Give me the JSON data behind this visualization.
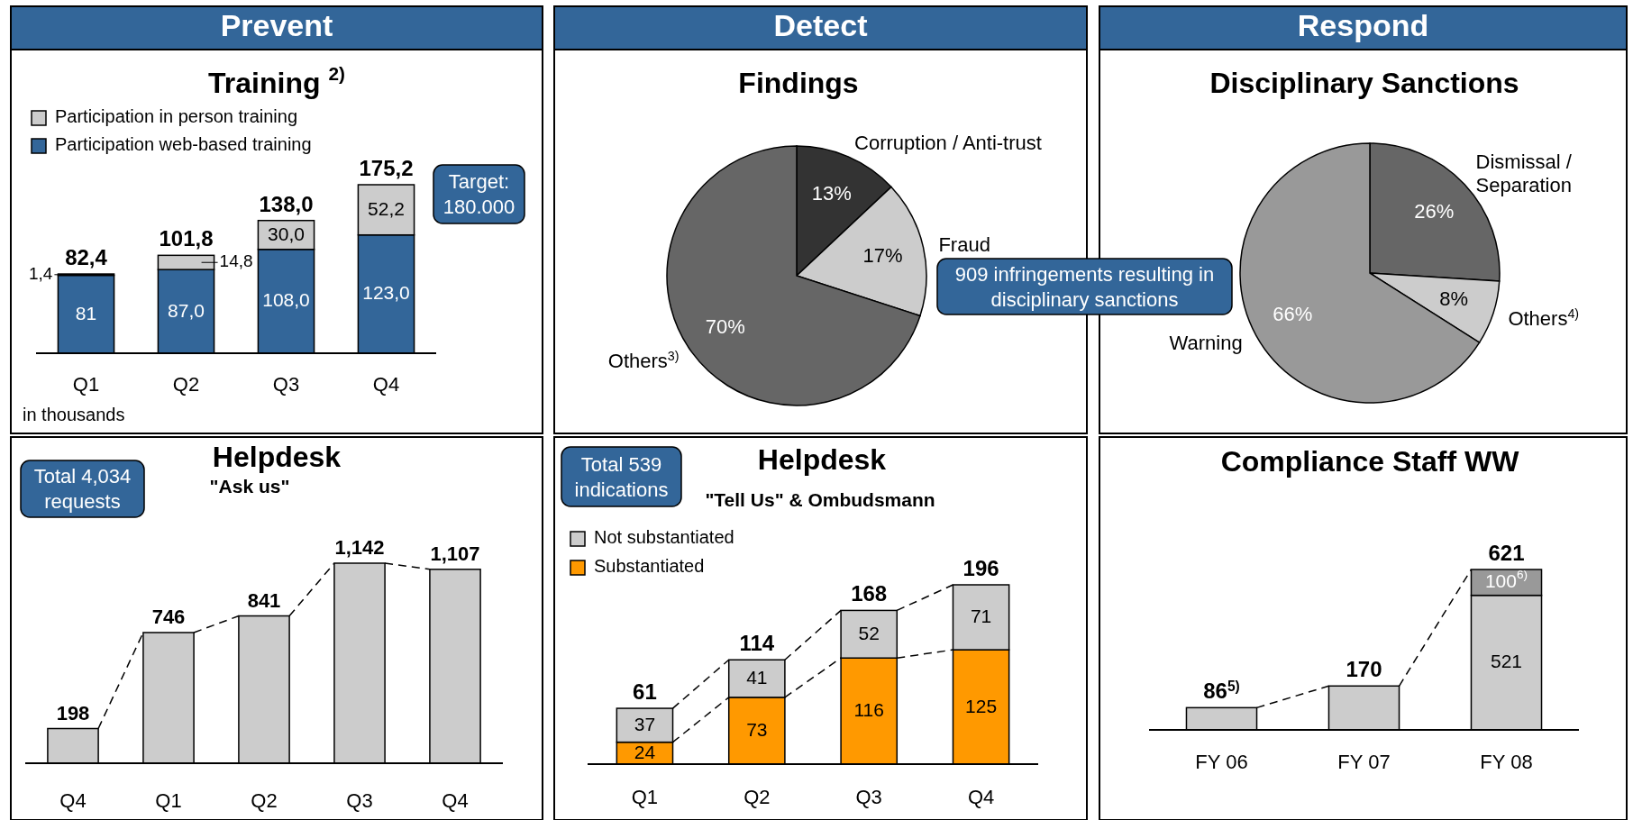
{
  "chart_data": [
    {
      "type": "bar",
      "title": "Training $^{2)}$",
      "categories": [
        "Q1",
        "Q2",
        "Q3",
        "Q4"
      ],
      "stacked": true,
      "series": [
        {
          "name": "Participation web-based training",
          "color": "#336699",
          "values": [
            81,
            87.0,
            108.0,
            123.0
          ],
          "value_labels": [
            "81",
            "87,0",
            "108,0",
            "123,0"
          ]
        },
        {
          "name": "Participation in person training",
          "color": "#cccccc",
          "values": [
            1.4,
            14.8,
            30.0,
            52.2
          ],
          "value_labels": [
            "1,4",
            "14,8",
            "30,0",
            "52,2"
          ]
        }
      ],
      "totals": [
        "82,4",
        "101,8",
        "138,0",
        "175,2"
      ],
      "tick_labels": "x",
      "legend": "top left",
      "annotations": [
        "Prevent",
        "Target: 180.000",
        "in thousands"
      ]
    },
    {
      "type": "pie",
      "title": "Findings",
      "categories": [
        "Corruption / Anti-trust",
        "Fraud",
        "Others$^{3)}$"
      ],
      "values": [
        13,
        17,
        70
      ],
      "colors": [
        "#333333",
        "#cccccc",
        "#666666"
      ],
      "value_labels": [
        "13%",
        "17%",
        "70%"
      ],
      "annotations": [
        "Detect",
        "909 infringements resulting in disciplinary sanctions"
      ]
    },
    {
      "type": "pie",
      "title": "Disciplinary Sanctions",
      "categories": [
        "Dismissal / Separation",
        "Others$^{4)}$",
        "Warning"
      ],
      "values": [
        26,
        8,
        66
      ],
      "colors": [
        "#666666",
        "#cccccc",
        "#999999"
      ],
      "value_labels": [
        "26%",
        "8%",
        "66%"
      ],
      "annotations": [
        "Respond"
      ]
    },
    {
      "type": "bar",
      "title": "Helpdesk",
      "subtitle": "\"Ask us\"",
      "categories": [
        "Q4",
        "Q1",
        "Q2",
        "Q3",
        "Q4"
      ],
      "values": [
        198,
        746,
        841,
        1142,
        1107
      ],
      "color": "#cccccc",
      "value_labels": [
        "198",
        "746",
        "841",
        "1,142",
        "1,107"
      ],
      "tick_labels": "x",
      "annotations": [
        "Total 4,034 requests"
      ]
    },
    {
      "type": "bar",
      "title": "Helpdesk",
      "subtitle": "\"Tell Us\" & Ombudsmann",
      "categories": [
        "Q1",
        "Q2",
        "Q3",
        "Q4"
      ],
      "stacked": true,
      "series": [
        {
          "name": "Substantiated",
          "color": "#ff9900",
          "values": [
            24,
            73,
            116,
            125
          ]
        },
        {
          "name": "Not substantiated",
          "color": "#cccccc",
          "values": [
            37,
            41,
            52,
            71
          ]
        }
      ],
      "data_labels": true,
      "totals": [
        "61",
        "114",
        "168",
        "196"
      ],
      "tick_labels": "x",
      "legend": "top left",
      "annotations": [
        "Total 539 indications"
      ]
    },
    {
      "type": "bar",
      "title": "Compliance Staff WW",
      "categories": [
        "FY 06",
        "FY 07",
        "FY 08"
      ],
      "stacked": true,
      "series": [
        {
          "color": "#cccccc",
          "values": [
            86,
            170,
            521
          ],
          "value_labels": [
            null,
            null,
            "521"
          ]
        },
        {
          "color": "#999999",
          "values": [
            null,
            null,
            100
          ],
          "value_labels": [
            null,
            null,
            "100$^{6)}$"
          ]
        }
      ],
      "totals": [
        "86$^{5)}$",
        "170",
        "621"
      ],
      "tick_labels": "x"
    }
  ]
}
